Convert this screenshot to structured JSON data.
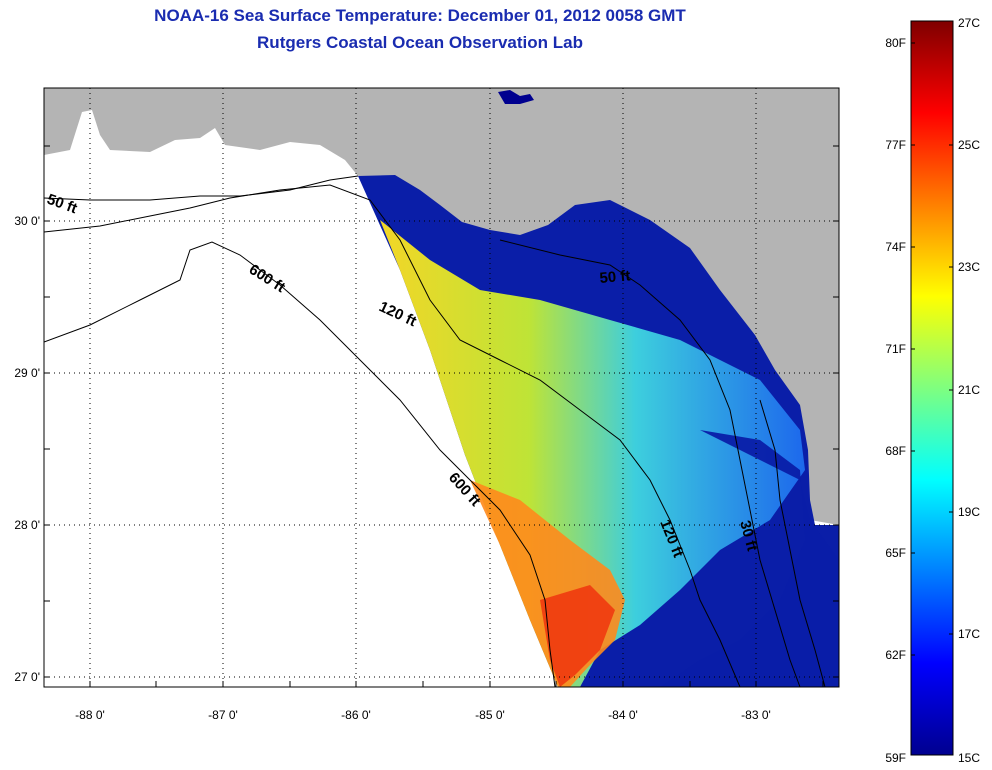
{
  "title": {
    "line1": "NOAA-16 Sea Surface Temperature:  December 01, 2012 0058 GMT",
    "line2": "Rutgers Coastal Ocean Observation Lab"
  },
  "axes": {
    "lat_labels": [
      "30 0'",
      "29 0'",
      "28 0'",
      "27 0'"
    ],
    "lon_labels": [
      "-88 0'",
      "-87 0'",
      "-86 0'",
      "-85 0'",
      "-84 0'",
      "-83 0'"
    ]
  },
  "contours": {
    "c50_west": "50 ft",
    "c600_north": "600 ft",
    "c120_north": "120 ft",
    "c50_east": "50 ft",
    "c600_south": "600 ft",
    "c120_south": "120 ft",
    "c30_east": "30 ft"
  },
  "colorbar": {
    "f_labels": [
      "80F",
      "77F",
      "74F",
      "71F",
      "68F",
      "65F",
      "62F",
      "59F"
    ],
    "c_labels": [
      "27C",
      "25C",
      "23C",
      "21C",
      "19C",
      "17C",
      "15C"
    ]
  },
  "colors": {
    "land": "#b4b4b4",
    "title": "#1a2cb0"
  }
}
